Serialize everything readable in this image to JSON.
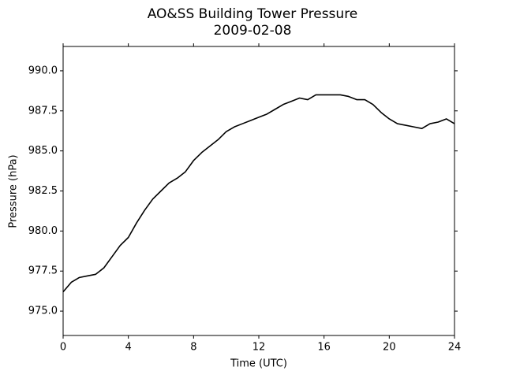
{
  "chart_data": {
    "type": "line",
    "title": "AO&SS Building Tower Pressure",
    "subtitle": "2009-02-08",
    "xlabel": "Time (UTC)",
    "ylabel": "Pressure (hPa)",
    "color": "#000000",
    "x": [
      0,
      0.5,
      1,
      1.5,
      2,
      2.5,
      3,
      3.5,
      4,
      4.5,
      5,
      5.5,
      6,
      6.5,
      7,
      7.5,
      8,
      8.5,
      9,
      9.5,
      10,
      10.5,
      11,
      11.5,
      12,
      12.5,
      13,
      13.5,
      14,
      14.5,
      15,
      15.5,
      16,
      16.5,
      17,
      17.5,
      18,
      18.5,
      19,
      19.5,
      20,
      20.5,
      21,
      21.5,
      22,
      22.5,
      23,
      23.5,
      24
    ],
    "values": [
      976.2,
      976.8,
      977.1,
      977.2,
      977.3,
      977.7,
      978.4,
      979.1,
      979.6,
      980.5,
      981.3,
      982.0,
      982.5,
      983.0,
      983.3,
      983.7,
      984.4,
      984.9,
      985.3,
      985.7,
      986.2,
      986.5,
      986.7,
      986.9,
      987.1,
      987.3,
      987.6,
      987.9,
      988.1,
      988.3,
      988.2,
      988.5,
      988.5,
      988.5,
      988.5,
      988.4,
      988.2,
      988.2,
      987.9,
      987.4,
      987.0,
      986.7,
      986.6,
      986.5,
      986.4,
      986.7,
      986.8,
      987.0,
      986.7
    ],
    "xlim": [
      0,
      24
    ],
    "xticks": [
      0,
      4,
      8,
      12,
      16,
      20,
      24
    ],
    "ylim": [
      973.48,
      991.52
    ],
    "yticks": [
      {
        "value": 975,
        "label": "975.0"
      },
      {
        "value": 977.5,
        "label": "977.5"
      },
      {
        "value": 980,
        "label": "980.0"
      },
      {
        "value": 982.5,
        "label": "982.5"
      },
      {
        "value": 985,
        "label": "985.0"
      },
      {
        "value": 987.5,
        "label": "987.5"
      },
      {
        "value": 990,
        "label": "990.0"
      }
    ],
    "grid": false
  }
}
